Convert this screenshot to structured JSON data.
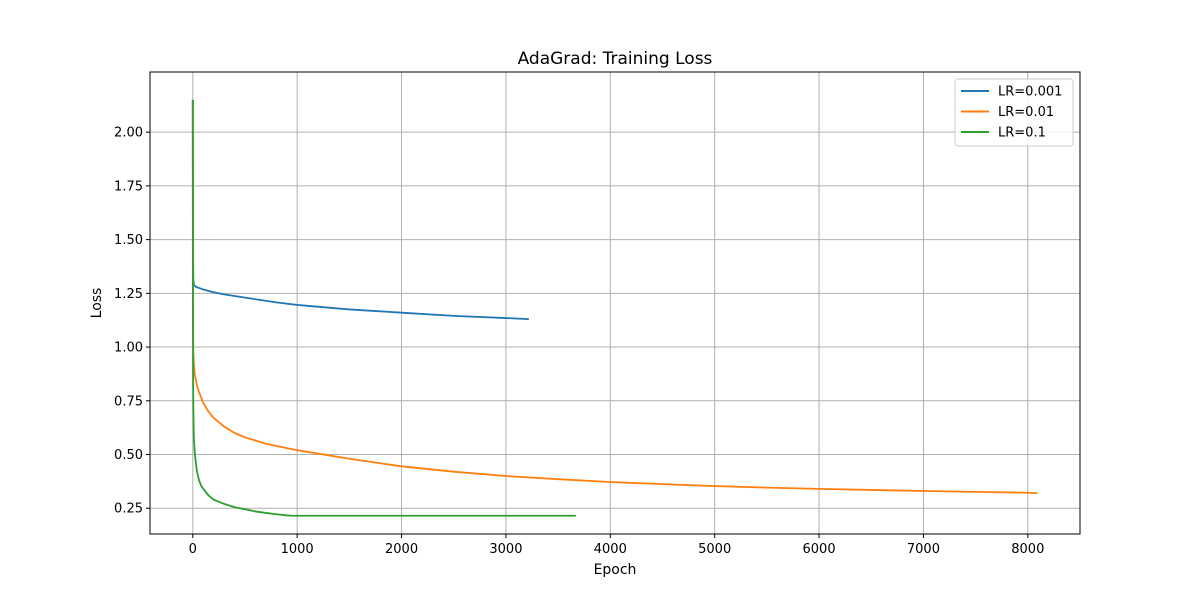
{
  "chart_data": {
    "type": "line",
    "title": "AdaGrad: Training Loss",
    "xlabel": "Epoch",
    "ylabel": "Loss",
    "xlim": [
      -410,
      8500
    ],
    "ylim": [
      0.13,
      2.28
    ],
    "xticks": [
      0,
      1000,
      2000,
      3000,
      4000,
      5000,
      6000,
      7000,
      8000
    ],
    "xtick_labels": [
      "0",
      "1000",
      "2000",
      "3000",
      "4000",
      "5000",
      "6000",
      "7000",
      "8000"
    ],
    "yticks": [
      0.25,
      0.5,
      0.75,
      1.0,
      1.25,
      1.5,
      1.75,
      2.0
    ],
    "ytick_labels": [
      "0.25",
      "0.50",
      "0.75",
      "1.00",
      "1.25",
      "1.50",
      "1.75",
      "2.00"
    ],
    "grid": true,
    "legend_position": "top-right",
    "series": [
      {
        "name": "LR=0.001",
        "color": "#1f77b4",
        "x": [
          0,
          2,
          5,
          10,
          30,
          60,
          100,
          200,
          300,
          500,
          800,
          1000,
          1500,
          2000,
          2500,
          3000,
          3220
        ],
        "y": [
          2.15,
          1.45,
          1.32,
          1.29,
          1.28,
          1.275,
          1.268,
          1.255,
          1.245,
          1.23,
          1.208,
          1.196,
          1.175,
          1.16,
          1.145,
          1.135,
          1.13
        ]
      },
      {
        "name": "LR=0.01",
        "color": "#ff7f0e",
        "x": [
          0,
          1,
          3,
          5,
          10,
          20,
          40,
          60,
          100,
          150,
          200,
          300,
          400,
          500,
          700,
          1000,
          1500,
          2000,
          2500,
          3000,
          3500,
          4000,
          4500,
          5000,
          5500,
          6000,
          6500,
          7000,
          7500,
          8000,
          8090
        ],
        "y": [
          2.15,
          1.2,
          1.05,
          0.98,
          0.92,
          0.87,
          0.82,
          0.79,
          0.74,
          0.7,
          0.67,
          0.63,
          0.6,
          0.58,
          0.55,
          0.52,
          0.48,
          0.445,
          0.42,
          0.4,
          0.385,
          0.372,
          0.362,
          0.353,
          0.346,
          0.34,
          0.335,
          0.33,
          0.326,
          0.322,
          0.32
        ]
      },
      {
        "name": "LR=0.1",
        "color": "#2ca02c",
        "x": [
          0,
          1,
          3,
          5,
          10,
          20,
          40,
          60,
          80,
          100,
          150,
          200,
          300,
          400,
          500,
          600,
          700,
          800,
          900,
          950,
          1000,
          1500,
          2000,
          2500,
          3000,
          3500,
          3670
        ],
        "y": [
          2.15,
          1.3,
          0.85,
          0.72,
          0.58,
          0.5,
          0.42,
          0.38,
          0.355,
          0.34,
          0.31,
          0.29,
          0.27,
          0.255,
          0.245,
          0.235,
          0.228,
          0.222,
          0.217,
          0.215,
          0.215,
          0.215,
          0.215,
          0.215,
          0.215,
          0.215,
          0.215
        ]
      }
    ]
  }
}
